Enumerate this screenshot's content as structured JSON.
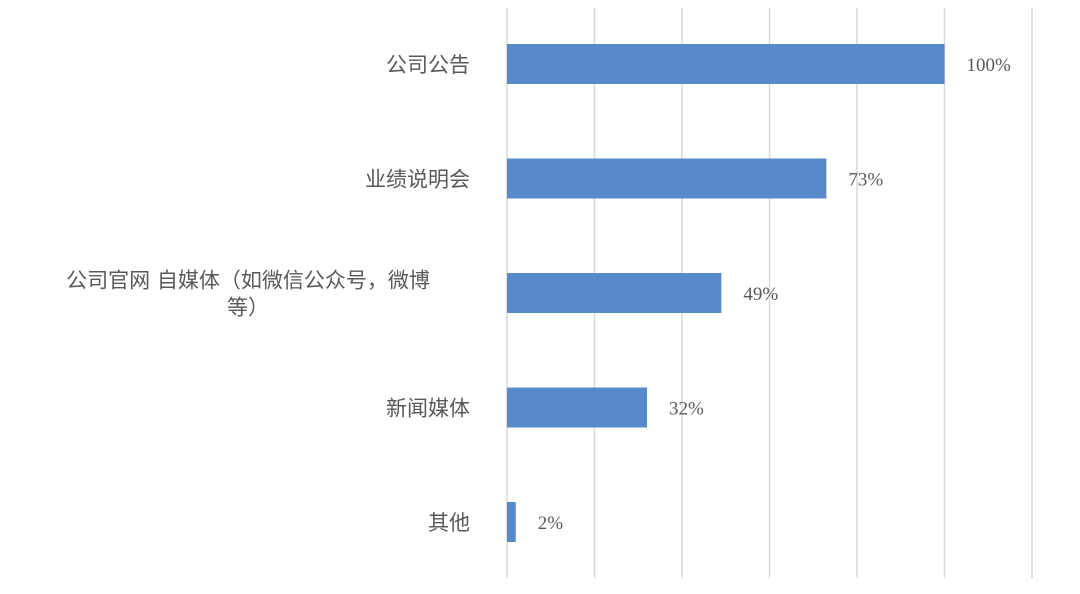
{
  "chart_data": {
    "type": "bar",
    "orientation": "horizontal",
    "categories": [
      "公司公告",
      "业绩说明会",
      "公司官网 自媒体（如微信公众号，微博等）",
      "新闻媒体",
      "其他"
    ],
    "category_lines": [
      [
        "公司公告"
      ],
      [
        "业绩说明会"
      ],
      [
        "公司官网 自媒体（如微信公众号，微博",
        "等）"
      ],
      [
        "新闻媒体"
      ],
      [
        "其他"
      ]
    ],
    "values": [
      100,
      73,
      49,
      32,
      2
    ],
    "data_labels": [
      "100%",
      "73%",
      "49%",
      "32%",
      "2%"
    ],
    "unit": "%",
    "xlim": [
      0,
      120
    ],
    "grid_step": 20,
    "grid": true,
    "x_tick_labels_shown": false,
    "legend": "none",
    "colors": {
      "bar": "#5889CB",
      "grid": "#D9D9D9",
      "text": "#595959"
    }
  }
}
